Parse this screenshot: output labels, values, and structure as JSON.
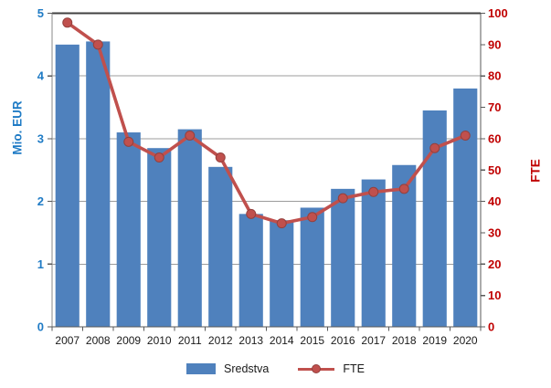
{
  "chart_data": {
    "type": "bar",
    "subtype": "bar-line-combo",
    "categories": [
      "2007",
      "2008",
      "2009",
      "2010",
      "2011",
      "2012",
      "2013",
      "2014",
      "2015",
      "2016",
      "2017",
      "2018",
      "2019",
      "2020"
    ],
    "series": [
      {
        "name": "Sredstva",
        "type": "bar",
        "axis": "left",
        "color": "#4F81BD",
        "values": [
          4.5,
          4.55,
          3.1,
          2.85,
          3.15,
          2.55,
          1.8,
          1.7,
          1.9,
          2.2,
          2.35,
          2.58,
          3.45,
          3.8
        ]
      },
      {
        "name": "FTE",
        "type": "line",
        "axis": "right",
        "color": "#C0504D",
        "marker_stroke": "#94403D",
        "values": [
          97,
          90,
          59,
          54,
          61,
          54,
          36,
          33,
          35,
          41,
          43,
          44,
          57,
          61
        ]
      }
    ],
    "left_axis": {
      "title": "Mio. EUR",
      "min": 0,
      "max": 5,
      "step": 1,
      "label_color": "#1F7BC5"
    },
    "right_axis": {
      "title": "FTE",
      "min": 0,
      "max": 100,
      "step": 10,
      "label_color": "#C00000"
    },
    "x_axis": {
      "label_color": "#1a1a1a"
    },
    "grid": true,
    "gridline_color": "#9C9C9C",
    "border_color": "#595959",
    "top_border_color": "#404040",
    "legend_position": "bottom",
    "legend": [
      "Sredstva",
      "FTE"
    ],
    "background": "#ffffff"
  }
}
